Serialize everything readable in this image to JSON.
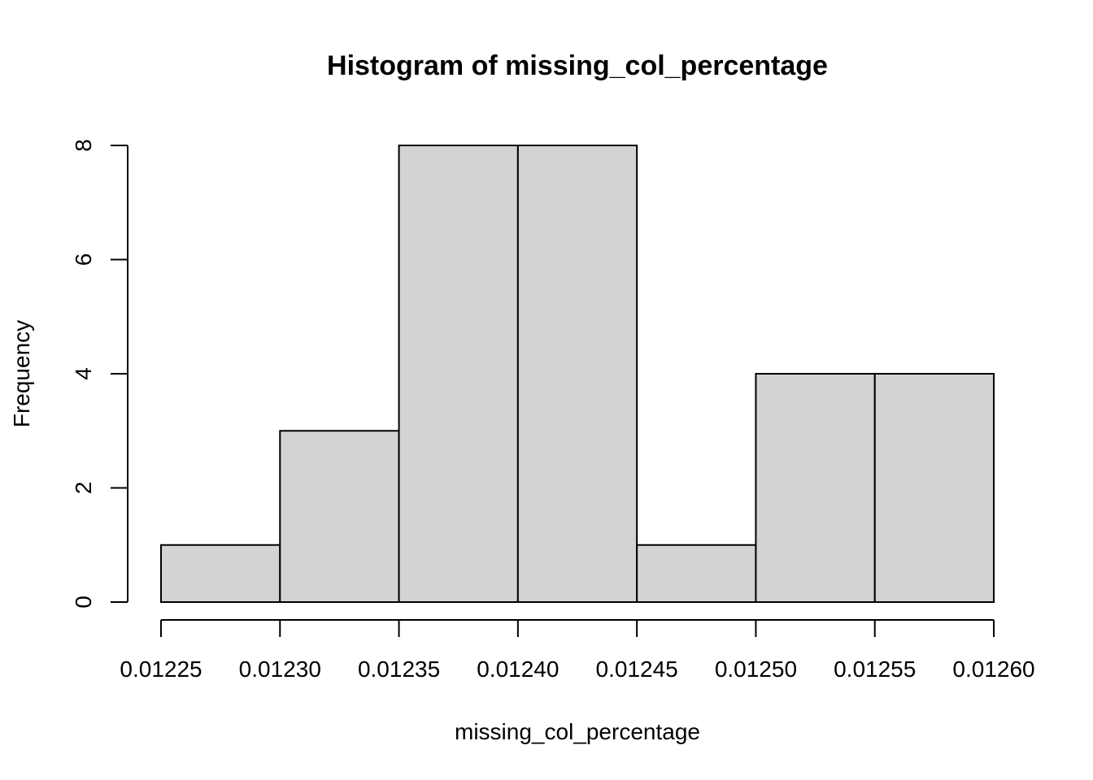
{
  "chart_data": {
    "type": "bar",
    "subtype": "histogram",
    "title": "Histogram of missing_col_percentage",
    "xlabel": "missing_col_percentage",
    "ylabel": "Frequency",
    "bins": [
      {
        "x0": 0.01225,
        "x1": 0.0123,
        "count": 1
      },
      {
        "x0": 0.0123,
        "x1": 0.01235,
        "count": 3
      },
      {
        "x0": 0.01235,
        "x1": 0.0124,
        "count": 8
      },
      {
        "x0": 0.0124,
        "x1": 0.01245,
        "count": 8
      },
      {
        "x0": 0.01245,
        "x1": 0.0125,
        "count": 1
      },
      {
        "x0": 0.0125,
        "x1": 0.01255,
        "count": 4
      },
      {
        "x0": 0.01255,
        "x1": 0.0126,
        "count": 4
      }
    ],
    "x_ticks": [
      {
        "value": 0.01225,
        "label": "0.01225"
      },
      {
        "value": 0.0123,
        "label": "0.01230"
      },
      {
        "value": 0.01235,
        "label": "0.01235"
      },
      {
        "value": 0.0124,
        "label": "0.01240"
      },
      {
        "value": 0.01245,
        "label": "0.01245"
      },
      {
        "value": 0.0125,
        "label": "0.01250"
      },
      {
        "value": 0.01255,
        "label": "0.01255"
      },
      {
        "value": 0.0126,
        "label": "0.01260"
      }
    ],
    "y_ticks": [
      {
        "value": 0,
        "label": "0"
      },
      {
        "value": 2,
        "label": "2"
      },
      {
        "value": 4,
        "label": "4"
      },
      {
        "value": 6,
        "label": "6"
      },
      {
        "value": 8,
        "label": "8"
      }
    ],
    "xlim": [
      0.01225,
      0.0126
    ],
    "ylim": [
      0,
      8
    ],
    "grid": false,
    "legend": "none",
    "bar_fill_color": "#d3d3d3",
    "bar_stroke_color": "#000000",
    "background_color": "#ffffff"
  }
}
